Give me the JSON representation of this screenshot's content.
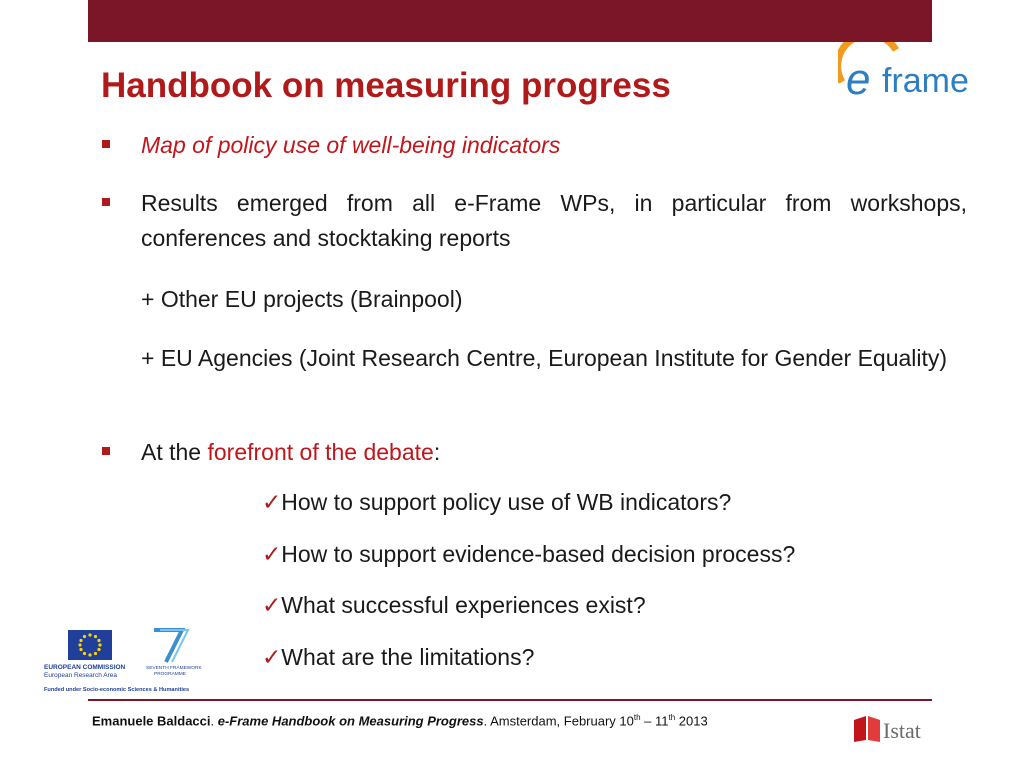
{
  "slide": {
    "title": "Handbook on measuring progress",
    "bullets": [
      {
        "text": "Map of policy use of well-being indicators"
      },
      {
        "text": "Results emerged from all e-Frame WPs, in particular from workshops, conferences and stocktaking reports"
      },
      {
        "text_prefix": "At the ",
        "text_highlight": "forefront of the debate",
        "text_suffix": ":"
      }
    ],
    "sub_points": [
      "+ Other EU projects (Brainpool)",
      "+ EU Agencies (Joint Research Centre, European Institute for Gender Equality)"
    ],
    "questions": [
      "How to support policy use of WB indicators?",
      "How to support evidence-based decision process?",
      "What successful experiences exist?",
      "What are the limitations?"
    ],
    "check_glyph": "✓"
  },
  "logos": {
    "eframe": {
      "part1": "e",
      "part2": "frame"
    },
    "eu": {
      "line1": "EUROPEAN COMMISSION",
      "line2": "European Research Area",
      "line3": "Funded under Socio-economic Sciences & Humanities",
      "fp7_line1": "SEVENTH FRAMEWORK",
      "fp7_line2": "PROGRAMME"
    },
    "istat": "Istat"
  },
  "footer": {
    "author": "Emanuele Baldacci",
    "sep": ". ",
    "work": "e-Frame Handbook on Measuring Progress",
    "place_date_prefix": ". Amsterdam, February 10",
    "sup1": "th",
    "dash": " – 11",
    "sup2": "th",
    "year": " 2013"
  },
  "colors": {
    "bar": "#7b1629",
    "title": "#b01a1a",
    "highlight": "#c0161b",
    "eframe_blue": "#2d7fc1",
    "eframe_orange": "#f39a1e"
  }
}
